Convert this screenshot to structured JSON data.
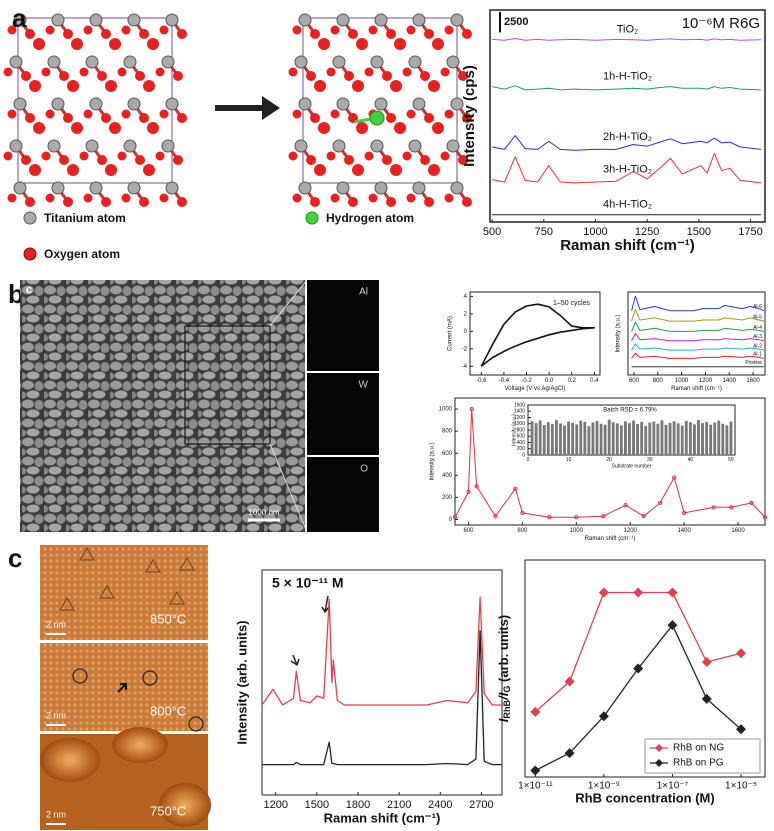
{
  "panels": {
    "letters": [
      "a",
      "b",
      "c"
    ],
    "atoms": {
      "titanium": "Titanium atom",
      "oxygen": "Oxygen atom",
      "hydrogen": "Hydrogen atom"
    },
    "sem": {
      "corner": "c",
      "scale": "1000 nm",
      "maps": [
        "Al",
        "W",
        "O"
      ]
    },
    "stm": {
      "temps": [
        "850°C",
        "800°C",
        "750°C"
      ],
      "scales": [
        "2 nm",
        "2 nm",
        "2 nm"
      ]
    }
  },
  "chart_data": [
    {
      "type": "line",
      "x_label": "Raman shift (cm⁻¹)",
      "y_label": "Intensity (cps)",
      "annotation": "10⁻⁶M R6G",
      "scale_bar": 2500,
      "xlim": [
        490,
        1820
      ],
      "xticks": [
        500,
        750,
        1000,
        1250,
        1500,
        1750
      ],
      "ylim": [
        0,
        26000
      ],
      "x": [
        500,
        560,
        612,
        660,
        720,
        774,
        830,
        900,
        1000,
        1100,
        1183,
        1250,
        1311,
        1363,
        1420,
        1510,
        1540,
        1575,
        1610,
        1650,
        1700,
        1800
      ],
      "series": [
        {
          "name": "TiO₂",
          "color": "#b44cf0",
          "values": [
            22400,
            22300,
            22500,
            22300,
            22400,
            22300,
            22350,
            22400,
            22300,
            22400,
            22350,
            22300,
            22400,
            22450,
            22350,
            22400,
            22300,
            22450,
            22350,
            22400,
            22300,
            22350
          ]
        },
        {
          "name": "1h-H-TiO₂",
          "color": "#1a9c6e",
          "values": [
            16600,
            16300,
            16700,
            16200,
            16300,
            16400,
            16200,
            16300,
            16200,
            16300,
            16400,
            16300,
            16500,
            16600,
            16400,
            16400,
            16300,
            16600,
            16400,
            16500,
            16300,
            16200
          ]
        },
        {
          "name": "2h-H-TiO₂",
          "color": "#2030e0",
          "values": [
            9200,
            8900,
            10600,
            9000,
            8900,
            9900,
            8900,
            8800,
            8900,
            8900,
            9500,
            9300,
            9800,
            10200,
            9600,
            9900,
            9700,
            10300,
            9700,
            9800,
            9200,
            8900
          ]
        },
        {
          "name": "3h-H-TiO₂",
          "color": "#f03030",
          "values": [
            5200,
            4900,
            8000,
            5100,
            4900,
            6900,
            4900,
            4800,
            4900,
            5000,
            6200,
            5300,
            6600,
            7800,
            5900,
            6900,
            6000,
            8400,
            6300,
            6600,
            5100,
            4800
          ]
        },
        {
          "name": "4h-H-TiO₂",
          "color": "#222222",
          "values": [
            900,
            900,
            900,
            900,
            900,
            900,
            900,
            900,
            900,
            900,
            900,
            900,
            900,
            900,
            900,
            900,
            900,
            900,
            900,
            900,
            900,
            900
          ]
        }
      ]
    },
    {
      "type": "line",
      "x_label": "Voltage (V vs Ag/AgCl)",
      "y_label": "Current (mA)",
      "annotation": "1–50 cycles",
      "xlim": [
        -0.7,
        0.45
      ],
      "xticks": [
        -0.6,
        -0.4,
        -0.2,
        {
          "value": 0,
          "label": "0.0"
        },
        0.2,
        0.4
      ],
      "ylim": [
        -5,
        4.5
      ],
      "yticks": [
        -4,
        -2,
        0,
        2,
        4
      ],
      "x": [
        -0.6,
        -0.5,
        -0.4,
        -0.3,
        -0.2,
        -0.1,
        0,
        0.1,
        0.2,
        0.3,
        0.4,
        0.3,
        0.2,
        0.1,
        0,
        -0.1,
        -0.2,
        -0.3,
        -0.4,
        -0.5,
        -0.6
      ],
      "series": [
        {
          "color": "#111111",
          "values": [
            -4,
            -1.5,
            0.8,
            2.2,
            2.9,
            3.1,
            2.8,
            1.8,
            0.6,
            0.4,
            0.4,
            0.3,
            0.1,
            -0.1,
            -0.4,
            -0.8,
            -1.2,
            -1.7,
            -2.3,
            -3,
            -4
          ]
        }
      ]
    },
    {
      "type": "line",
      "x_label": "Raman shift (cm⁻¹)",
      "y_label": "Intensity (a.u.)",
      "xlim": [
        550,
        1700
      ],
      "xticks": [
        600,
        800,
        1000,
        1200,
        1400,
        1600
      ],
      "ylim": [
        0,
        8
      ],
      "x": [
        580,
        612,
        650,
        774,
        900,
        1100,
        1183,
        1311,
        1363,
        1510,
        1575,
        1650,
        1690
      ],
      "series": [
        {
          "name": "Al-6",
          "color": "#2040d0",
          "values": [
            6.2,
            7.6,
            6.3,
            6.6,
            6.2,
            6.2,
            6.4,
            6.4,
            6.7,
            6.4,
            6.6,
            6.4,
            6.2
          ]
        },
        {
          "name": "Al-5",
          "color": "#9a9a20",
          "values": [
            5.2,
            6.3,
            5.3,
            5.5,
            5.2,
            5.2,
            5.3,
            5.3,
            5.5,
            5.3,
            5.5,
            5.3,
            5.2
          ]
        },
        {
          "name": "Al-4",
          "color": "#20a040",
          "values": [
            4.2,
            5.1,
            4.3,
            4.5,
            4.2,
            4.2,
            4.3,
            4.3,
            4.5,
            4.3,
            4.4,
            4.3,
            4.2
          ]
        },
        {
          "name": "Al-3",
          "color": "#c020c0",
          "values": [
            3.3,
            4.0,
            3.4,
            3.5,
            3.3,
            3.3,
            3.4,
            3.4,
            3.5,
            3.4,
            3.5,
            3.4,
            3.3
          ]
        },
        {
          "name": "Al-2",
          "color": "#20b0c0",
          "values": [
            2.4,
            3.0,
            2.5,
            2.6,
            2.4,
            2.4,
            2.5,
            2.5,
            2.6,
            2.5,
            2.6,
            2.5,
            2.4
          ]
        },
        {
          "name": "Al-1",
          "color": "#e02020",
          "values": [
            1.6,
            2.1,
            1.7,
            1.8,
            1.6,
            1.6,
            1.7,
            1.7,
            1.8,
            1.7,
            1.8,
            1.7,
            1.6
          ]
        },
        {
          "name": "Pristine",
          "color": "#333333",
          "values": [
            0.8,
            0.8,
            0.8,
            0.8,
            0.8,
            0.8,
            0.8,
            0.8,
            0.8,
            0.8,
            0.8,
            0.8,
            0.8
          ]
        }
      ]
    },
    {
      "type": "line",
      "markers": "circle",
      "x_label": "Raman shift (cm⁻¹)",
      "y_label": "Intensity (a.u.)",
      "xlim": [
        550,
        1700
      ],
      "xticks": [
        600,
        800,
        1000,
        1200,
        1400,
        1600
      ],
      "ylim": [
        -50,
        1100
      ],
      "yticks": [
        0,
        200,
        400,
        600,
        800,
        1000
      ],
      "x": [
        550,
        600,
        612,
        630,
        700,
        774,
        800,
        900,
        1000,
        1100,
        1183,
        1250,
        1311,
        1363,
        1400,
        1510,
        1575,
        1650,
        1700
      ],
      "series": [
        {
          "color": "#e03040",
          "values": [
            20,
            250,
            1000,
            300,
            30,
            280,
            60,
            20,
            20,
            30,
            130,
            30,
            150,
            380,
            60,
            110,
            110,
            150,
            20
          ]
        }
      ]
    },
    {
      "type": "bar",
      "x_label": "Substrate number",
      "y_label": "Intensity (a.u.)",
      "annotation": "Batch RSD = 6.79%",
      "color": "#777777",
      "xlim": [
        0,
        51
      ],
      "xticks": [
        0,
        10,
        20,
        30,
        40,
        50
      ],
      "ylim": [
        0,
        1600
      ],
      "yticks": [
        0,
        200,
        400,
        600,
        800,
        1000,
        1200,
        1400,
        1600
      ],
      "x": [
        1,
        2,
        3,
        4,
        5,
        6,
        7,
        8,
        9,
        10,
        11,
        12,
        13,
        14,
        15,
        16,
        17,
        18,
        19,
        20,
        21,
        22,
        23,
        24,
        25,
        26,
        27,
        28,
        29,
        30,
        31,
        32,
        33,
        34,
        35,
        36,
        37,
        38,
        39,
        40,
        41,
        42,
        43,
        44,
        45,
        46,
        47,
        48,
        49,
        50
      ],
      "values": [
        1080,
        1020,
        1110,
        960,
        1050,
        990,
        1120,
        1010,
        940,
        1070,
        1030,
        980,
        1100,
        1060,
        920,
        1040,
        1090,
        1000,
        970,
        1130,
        1050,
        1010,
        950,
        1080,
        1020,
        1100,
        990,
        1060,
        930,
        1040,
        1070,
        1000,
        1110,
        960,
        1030,
        1080,
        1010,
        940,
        1090,
        1050,
        980,
        1120,
        1020,
        1060,
        970,
        1040,
        1100,
        1000,
        950,
        1070
      ]
    },
    {
      "type": "line",
      "x_label": "Raman shift (cm⁻¹)",
      "y_label": "Intensity (arb. units)",
      "annotation": "5 × 10⁻¹¹ M",
      "xlim": [
        1100,
        2850
      ],
      "xticks": [
        1200,
        1500,
        1800,
        2100,
        2400,
        2700
      ],
      "ylim": [
        0,
        10
      ],
      "x": [
        1100,
        1180,
        1250,
        1330,
        1350,
        1380,
        1450,
        1500,
        1550,
        1590,
        1610,
        1620,
        1650,
        1700,
        2000,
        2300,
        2450,
        2600,
        2660,
        2690,
        2720,
        2780,
        2850
      ],
      "series": [
        {
          "color": "#e04050",
          "values": [
            4.0,
            4.7,
            4.0,
            4.3,
            5.5,
            4.2,
            4.1,
            4.4,
            4.3,
            8.7,
            5.0,
            6.0,
            4.2,
            4.0,
            4.0,
            4.0,
            4.2,
            4.1,
            4.6,
            8.8,
            4.5,
            4.0,
            4.0
          ]
        },
        {
          "color": "#222222",
          "values": [
            1.35,
            1.35,
            1.35,
            1.35,
            1.45,
            1.35,
            1.35,
            1.35,
            1.35,
            2.35,
            1.4,
            1.4,
            1.35,
            1.35,
            1.35,
            1.35,
            1.4,
            1.35,
            1.6,
            7.3,
            1.5,
            1.35,
            1.35
          ]
        }
      ]
    },
    {
      "type": "line",
      "markers": "diamond",
      "xlog": true,
      "legend": "lower right",
      "x_label": "RhB concentration (M)",
      "y_label": [
        "I",
        "RhB",
        "/I",
        "G",
        " (arb. units)"
      ],
      "xlim": [
        5e-12,
        5e-05
      ],
      "xticks": [
        {
          "value": 1e-11,
          "label": "1×10⁻¹¹"
        },
        {
          "value": 1e-09,
          "label": "1×10⁻⁹"
        },
        {
          "value": 1e-07,
          "label": "1×10⁻⁷"
        },
        {
          "value": 1e-05,
          "label": "1×10⁻⁵"
        }
      ],
      "ylim": [
        0,
        1
      ],
      "x": [
        1e-11,
        1e-10,
        1e-09,
        1e-08,
        1e-07,
        1e-06,
        1e-05
      ],
      "series": [
        {
          "name": "RhB on NG",
          "color": "#e04050",
          "values": [
            0.3,
            0.44,
            0.85,
            0.85,
            0.85,
            0.53,
            0.57
          ]
        },
        {
          "name": "RhB on PG",
          "color": "#222222",
          "values": [
            0.03,
            0.11,
            0.28,
            0.5,
            0.7,
            0.36,
            0.22
          ]
        }
      ]
    }
  ]
}
